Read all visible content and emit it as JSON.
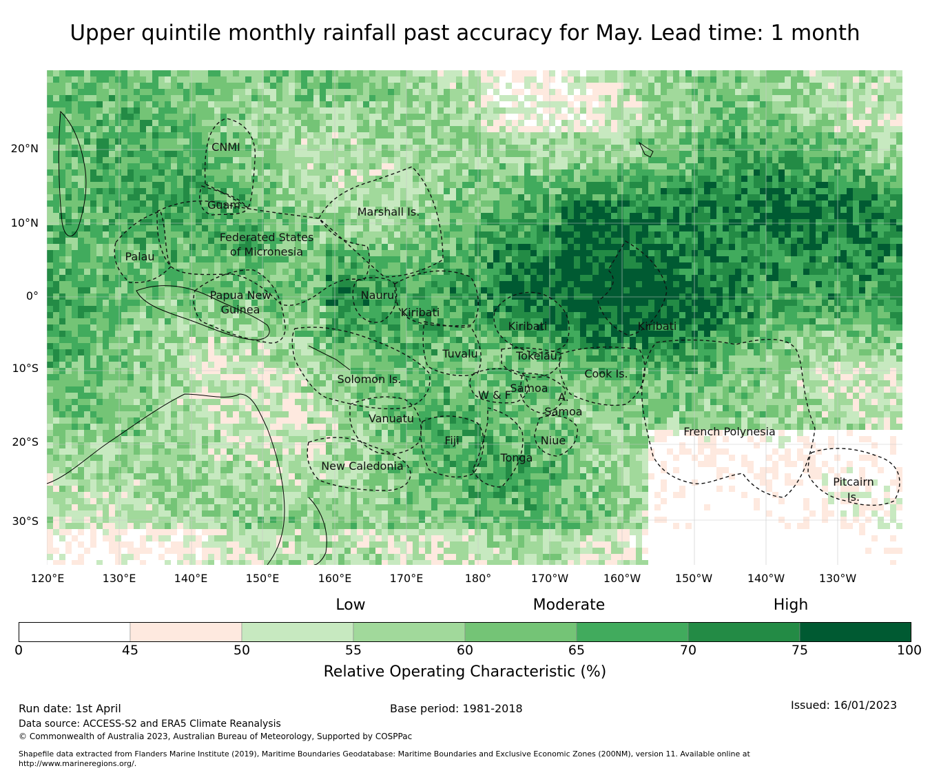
{
  "title": "Upper quintile monthly rainfall past accuracy for May. Lead time: 1 month",
  "map": {
    "latitude_labels": [
      "20°N",
      "10°N",
      "0°",
      "10°S",
      "20°S",
      "30°S"
    ],
    "longitude_labels": [
      "120°E",
      "130°E",
      "140°E",
      "150°E",
      "160°E",
      "170°E",
      "180°",
      "170°W",
      "160°W",
      "150°W",
      "140°W",
      "130°W"
    ],
    "regions": [
      "CNMI",
      "Guam",
      "Marshall Is.",
      "Federated States",
      "of Micronesia",
      "Palau",
      "Papua New",
      "Guinea",
      "Nauru",
      "Kiribati",
      "Kiribati",
      "Kiribati",
      "Tuvalu",
      "Tokelau",
      "Cook Is.",
      "Solomon Is.",
      "Samoa",
      "W & F",
      "A.",
      "Samoa",
      "Vanuatu",
      "Fiji",
      "Niue",
      "Tonga",
      "New Caledonia",
      "French Polynesia",
      "Pitcairn",
      "Is."
    ]
  },
  "legend": {
    "categories": [
      "Low",
      "Moderate",
      "High"
    ],
    "ticks": [
      "0",
      "45",
      "50",
      "55",
      "60",
      "65",
      "70",
      "75",
      "100"
    ],
    "colors": [
      "#ffffff",
      "#fee9df",
      "#c7e9c0",
      "#a1d99b",
      "#74c476",
      "#41ab5d",
      "#238b45",
      "#005a32"
    ],
    "label": "Relative Operating Characteristic (%)"
  },
  "footer": {
    "run_date": "Run date: 1st April",
    "base_period": "Base period: 1981-2018",
    "issued": "Issued: 16/01/2023",
    "data_source": "Data source: ACCESS-S2 and ERA5 Climate Reanalysis",
    "copyright": "© Commonwealth of Australia 2023, Australian Bureau of Meteorology, Supported by COSPPac",
    "shapefile_line1": "Shapefile data extracted from Flanders Marine Institute (2019), Maritime Boundaries Geodatabase: Maritime Boundaries and Exclusive Economic Zones (200NM), version 11. Available online at",
    "shapefile_line2": "http://www.marineregions.org/."
  }
}
